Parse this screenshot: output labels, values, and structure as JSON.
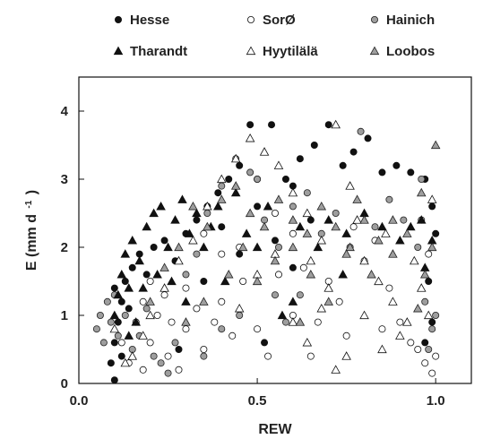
{
  "chart_data": {
    "type": "scatter",
    "xlabel": "REW",
    "ylabel": "E (mm d",
    "ylabel_superscript": "-1",
    "ylabel_close": ")",
    "xlim": [
      0.0,
      1.1
    ],
    "ylim": [
      0,
      4.5
    ],
    "xticks": [
      {
        "value": 0.0,
        "label": "0.0"
      },
      {
        "value": 0.5,
        "label": "0.5"
      },
      {
        "value": 1.0,
        "label": "1.0"
      }
    ],
    "yticks": [
      {
        "value": 0,
        "label": "0"
      },
      {
        "value": 1,
        "label": "1"
      },
      {
        "value": 2,
        "label": "2"
      },
      {
        "value": 3,
        "label": "3"
      },
      {
        "value": 4,
        "label": "4"
      }
    ],
    "grid": false,
    "legend_position": "top",
    "series": [
      {
        "name": "Hesse",
        "marker": "circle",
        "fill": "#111111",
        "stroke": "#111111",
        "points": [
          [
            0.1,
            0.05
          ],
          [
            0.09,
            0.3
          ],
          [
            0.1,
            0.6
          ],
          [
            0.11,
            0.9
          ],
          [
            0.12,
            1.2
          ],
          [
            0.13,
            1.5
          ],
          [
            0.14,
            1.1
          ],
          [
            0.1,
            1.4
          ],
          [
            0.12,
            0.4
          ],
          [
            0.15,
            1.7
          ],
          [
            0.17,
            1.9
          ],
          [
            0.19,
            1.6
          ],
          [
            0.21,
            2.0
          ],
          [
            0.24,
            2.1
          ],
          [
            0.27,
            1.8
          ],
          [
            0.3,
            2.2
          ],
          [
            0.33,
            2.4
          ],
          [
            0.36,
            2.6
          ],
          [
            0.39,
            2.8
          ],
          [
            0.42,
            3.0
          ],
          [
            0.45,
            3.2
          ],
          [
            0.48,
            3.8
          ],
          [
            0.54,
            3.8
          ],
          [
            0.58,
            3.0
          ],
          [
            0.62,
            3.3
          ],
          [
            0.66,
            3.5
          ],
          [
            0.7,
            3.8
          ],
          [
            0.74,
            3.2
          ],
          [
            0.77,
            3.4
          ],
          [
            0.81,
            3.6
          ],
          [
            0.85,
            3.1
          ],
          [
            0.89,
            3.2
          ],
          [
            0.93,
            3.1
          ],
          [
            0.97,
            3.0
          ],
          [
            0.99,
            2.6
          ],
          [
            1.0,
            2.2
          ],
          [
            0.98,
            1.5
          ],
          [
            0.99,
            0.9
          ],
          [
            0.97,
            0.6
          ],
          [
            0.5,
            2.6
          ],
          [
            0.55,
            2.1
          ],
          [
            0.6,
            1.7
          ],
          [
            0.65,
            2.4
          ],
          [
            0.45,
            1.9
          ],
          [
            0.35,
            1.5
          ],
          [
            0.28,
            0.5
          ],
          [
            0.52,
            0.6
          ],
          [
            0.5,
            3.0
          ],
          [
            0.6,
            2.9
          ],
          [
            0.4,
            2.3
          ]
        ]
      },
      {
        "name": "SorØ",
        "marker": "circle",
        "fill": "#ffffff",
        "stroke": "#111111",
        "points": [
          [
            0.12,
            0.6
          ],
          [
            0.14,
            0.3
          ],
          [
            0.16,
            0.9
          ],
          [
            0.18,
            0.2
          ],
          [
            0.2,
            0.6
          ],
          [
            0.22,
            1.0
          ],
          [
            0.25,
            0.4
          ],
          [
            0.28,
            0.2
          ],
          [
            0.3,
            0.8
          ],
          [
            0.33,
            1.1
          ],
          [
            0.35,
            0.5
          ],
          [
            0.38,
            0.9
          ],
          [
            0.4,
            1.2
          ],
          [
            0.43,
            0.7
          ],
          [
            0.46,
            1.5
          ],
          [
            0.5,
            0.8
          ],
          [
            0.53,
            0.4
          ],
          [
            0.56,
            1.6
          ],
          [
            0.6,
            1.0
          ],
          [
            0.63,
            1.7
          ],
          [
            0.67,
            0.9
          ],
          [
            0.7,
            1.5
          ],
          [
            0.73,
            1.2
          ],
          [
            0.77,
            2.3
          ],
          [
            0.8,
            1.8
          ],
          [
            0.83,
            2.1
          ],
          [
            0.87,
            1.4
          ],
          [
            0.9,
            0.9
          ],
          [
            0.93,
            0.6
          ],
          [
            0.95,
            0.5
          ],
          [
            0.97,
            0.3
          ],
          [
            0.99,
            0.15
          ],
          [
            1.0,
            0.4
          ],
          [
            0.98,
            1.9
          ],
          [
            0.96,
            2.4
          ],
          [
            0.6,
            2.2
          ],
          [
            0.55,
            2.5
          ],
          [
            0.65,
            0.4
          ],
          [
            0.75,
            0.7
          ],
          [
            0.85,
            0.8
          ],
          [
            0.45,
            2.0
          ],
          [
            0.4,
            1.9
          ],
          [
            0.35,
            2.2
          ],
          [
            0.3,
            1.4
          ],
          [
            0.24,
            1.3
          ],
          [
            0.2,
            1.5
          ],
          [
            0.18,
            1.2
          ],
          [
            0.26,
            0.9
          ]
        ]
      },
      {
        "name": "Hainich",
        "marker": "circle",
        "fill": "#9e9e9e",
        "stroke": "#222222",
        "points": [
          [
            0.05,
            0.8
          ],
          [
            0.06,
            1.0
          ],
          [
            0.07,
            0.6
          ],
          [
            0.08,
            1.2
          ],
          [
            0.09,
            0.9
          ],
          [
            0.1,
            1.3
          ],
          [
            0.11,
            0.7
          ],
          [
            0.13,
            1.0
          ],
          [
            0.15,
            0.5
          ],
          [
            0.17,
            0.7
          ],
          [
            0.19,
            1.1
          ],
          [
            0.21,
            0.4
          ],
          [
            0.23,
            0.3
          ],
          [
            0.25,
            0.15
          ],
          [
            0.27,
            0.6
          ],
          [
            0.3,
            1.6
          ],
          [
            0.33,
            1.9
          ],
          [
            0.36,
            2.5
          ],
          [
            0.4,
            2.9
          ],
          [
            0.44,
            3.3
          ],
          [
            0.48,
            3.1
          ],
          [
            0.52,
            2.4
          ],
          [
            0.56,
            2.0
          ],
          [
            0.6,
            2.6
          ],
          [
            0.64,
            2.8
          ],
          [
            0.68,
            2.2
          ],
          [
            0.72,
            2.5
          ],
          [
            0.76,
            2.0
          ],
          [
            0.79,
            3.7
          ],
          [
            0.83,
            2.3
          ],
          [
            0.87,
            2.7
          ],
          [
            0.91,
            2.4
          ],
          [
            0.95,
            2.0
          ],
          [
            0.97,
            1.2
          ],
          [
            0.99,
            0.8
          ],
          [
            1.0,
            1.0
          ],
          [
            0.98,
            0.5
          ],
          [
            0.96,
            3.0
          ],
          [
            0.5,
            3.0
          ],
          [
            0.55,
            1.3
          ],
          [
            0.58,
            0.9
          ],
          [
            0.62,
            1.3
          ],
          [
            0.35,
            0.4
          ],
          [
            0.4,
            0.8
          ],
          [
            0.45,
            1.0
          ]
        ]
      },
      {
        "name": "Tharandt",
        "marker": "triangle",
        "fill": "#111111",
        "stroke": "#111111",
        "points": [
          [
            0.1,
            1.0
          ],
          [
            0.11,
            1.3
          ],
          [
            0.12,
            1.6
          ],
          [
            0.13,
            1.9
          ],
          [
            0.14,
            1.4
          ],
          [
            0.15,
            2.1
          ],
          [
            0.17,
            1.8
          ],
          [
            0.19,
            2.3
          ],
          [
            0.21,
            2.5
          ],
          [
            0.23,
            2.6
          ],
          [
            0.25,
            2.0
          ],
          [
            0.27,
            2.4
          ],
          [
            0.29,
            2.7
          ],
          [
            0.31,
            2.2
          ],
          [
            0.33,
            2.5
          ],
          [
            0.35,
            2.0
          ],
          [
            0.37,
            2.3
          ],
          [
            0.39,
            2.6
          ],
          [
            0.41,
            1.5
          ],
          [
            0.44,
            2.8
          ],
          [
            0.47,
            2.2
          ],
          [
            0.5,
            2.0
          ],
          [
            0.53,
            2.6
          ],
          [
            0.57,
            1.0
          ],
          [
            0.62,
            2.3
          ],
          [
            0.67,
            2.0
          ],
          [
            0.7,
            2.4
          ],
          [
            0.75,
            2.2
          ],
          [
            0.8,
            2.5
          ],
          [
            0.85,
            2.3
          ],
          [
            0.9,
            2.1
          ],
          [
            0.93,
            2.3
          ],
          [
            0.96,
            2.4
          ],
          [
            0.99,
            2.1
          ],
          [
            0.97,
            1.7
          ],
          [
            0.3,
            1.2
          ],
          [
            0.26,
            1.5
          ],
          [
            0.22,
            1.6
          ],
          [
            0.18,
            1.4
          ],
          [
            0.16,
            0.9
          ],
          [
            0.14,
            0.7
          ],
          [
            0.6,
            1.2
          ],
          [
            0.74,
            1.6
          ]
        ]
      },
      {
        "name": "Hyytilälä",
        "marker": "triangle",
        "fill": "#ffffff",
        "stroke": "#111111",
        "points": [
          [
            0.1,
            0.8
          ],
          [
            0.13,
            0.3
          ],
          [
            0.15,
            0.4
          ],
          [
            0.18,
            0.7
          ],
          [
            0.2,
            1.0
          ],
          [
            0.24,
            1.4
          ],
          [
            0.28,
            1.8
          ],
          [
            0.32,
            2.1
          ],
          [
            0.36,
            2.6
          ],
          [
            0.4,
            3.0
          ],
          [
            0.44,
            3.3
          ],
          [
            0.48,
            3.6
          ],
          [
            0.52,
            3.4
          ],
          [
            0.56,
            3.2
          ],
          [
            0.6,
            2.8
          ],
          [
            0.64,
            2.5
          ],
          [
            0.68,
            2.1
          ],
          [
            0.72,
            3.8
          ],
          [
            0.76,
            2.9
          ],
          [
            0.8,
            1.8
          ],
          [
            0.84,
            1.5
          ],
          [
            0.88,
            1.2
          ],
          [
            0.92,
            0.9
          ],
          [
            0.96,
            1.4
          ],
          [
            0.99,
            2.7
          ],
          [
            0.6,
            0.9
          ],
          [
            0.64,
            0.6
          ],
          [
            0.68,
            1.1
          ],
          [
            0.72,
            0.2
          ],
          [
            0.75,
            0.4
          ],
          [
            0.8,
            1.0
          ],
          [
            0.85,
            0.5
          ],
          [
            0.9,
            0.7
          ],
          [
            0.45,
            1.1
          ],
          [
            0.5,
            1.6
          ],
          [
            0.55,
            1.9
          ],
          [
            0.65,
            1.8
          ],
          [
            0.7,
            1.4
          ],
          [
            0.78,
            2.4
          ],
          [
            0.86,
            2.2
          ],
          [
            0.94,
            1.8
          ],
          [
            0.98,
            1.0
          ]
        ]
      },
      {
        "name": "Loobos",
        "marker": "triangle",
        "fill": "#9e9e9e",
        "stroke": "#222222",
        "points": [
          [
            0.2,
            1.2
          ],
          [
            0.24,
            1.7
          ],
          [
            0.28,
            2.0
          ],
          [
            0.32,
            2.6
          ],
          [
            0.36,
            2.3
          ],
          [
            0.4,
            2.7
          ],
          [
            0.44,
            2.9
          ],
          [
            0.48,
            2.5
          ],
          [
            0.52,
            2.3
          ],
          [
            0.56,
            2.7
          ],
          [
            0.6,
            2.4
          ],
          [
            0.64,
            2.2
          ],
          [
            0.68,
            2.6
          ],
          [
            0.72,
            2.3
          ],
          [
            0.76,
            2.0
          ],
          [
            0.8,
            2.4
          ],
          [
            0.84,
            2.1
          ],
          [
            0.88,
            2.4
          ],
          [
            0.92,
            2.2
          ],
          [
            0.96,
            2.8
          ],
          [
            0.99,
            2.0
          ],
          [
            1.0,
            3.5
          ],
          [
            0.97,
            1.6
          ],
          [
            0.95,
            1.1
          ],
          [
            0.5,
            1.5
          ],
          [
            0.55,
            1.8
          ],
          [
            0.6,
            2.0
          ],
          [
            0.65,
            1.6
          ],
          [
            0.7,
            1.2
          ],
          [
            0.75,
            1.9
          ],
          [
            0.82,
            1.6
          ],
          [
            0.88,
            1.9
          ],
          [
            0.3,
            0.9
          ],
          [
            0.35,
            1.2
          ],
          [
            0.42,
            1.6
          ],
          [
            0.46,
            2.0
          ],
          [
            0.62,
            0.9
          ],
          [
            0.78,
            2.7
          ]
        ]
      }
    ]
  }
}
